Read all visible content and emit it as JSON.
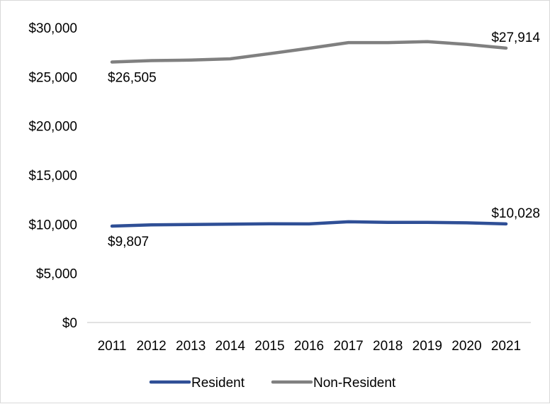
{
  "chart_data": {
    "type": "line",
    "title": "",
    "xlabel": "",
    "ylabel": "",
    "categories": [
      "2011",
      "2012",
      "2013",
      "2014",
      "2015",
      "2016",
      "2017",
      "2018",
      "2019",
      "2020",
      "2021"
    ],
    "ylim": [
      0,
      30000
    ],
    "y_ticks": [
      {
        "value": 0,
        "label": "$0"
      },
      {
        "value": 5000,
        "label": "$5,000"
      },
      {
        "value": 10000,
        "label": "$10,000"
      },
      {
        "value": 15000,
        "label": "$15,000"
      },
      {
        "value": 20000,
        "label": "$20,000"
      },
      {
        "value": 25000,
        "label": "$25,000"
      },
      {
        "value": 30000,
        "label": "$30,000"
      }
    ],
    "grid": false,
    "legend_position": "bottom",
    "series": [
      {
        "name": "Resident",
        "color": "#2f4f96",
        "values": [
          9807,
          9930,
          9970,
          10010,
          10040,
          10030,
          10250,
          10190,
          10190,
          10140,
          10028
        ],
        "data_labels": [
          {
            "index": 0,
            "text": "$9,807",
            "placement": "below"
          },
          {
            "index": 10,
            "text": "$10,028",
            "placement": "above"
          }
        ]
      },
      {
        "name": "Non-Resident",
        "color": "#808080",
        "values": [
          26505,
          26650,
          26700,
          26830,
          27350,
          27900,
          28480,
          28480,
          28580,
          28300,
          27914
        ],
        "data_labels": [
          {
            "index": 0,
            "text": "$26,505",
            "placement": "below"
          },
          {
            "index": 10,
            "text": "$27,914",
            "placement": "above"
          }
        ]
      }
    ]
  }
}
